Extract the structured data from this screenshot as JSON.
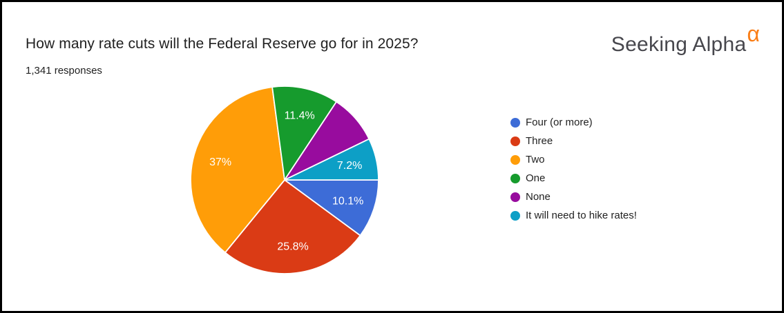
{
  "page": {
    "title": "How many rate cuts will the Federal Reserve go for in 2025?",
    "responses_label": "1,341 responses",
    "background_color": "#ffffff",
    "frame_color": "#000000"
  },
  "logo": {
    "text": "Seeking Alpha",
    "alpha_symbol": "α",
    "text_color": "#47474D",
    "alpha_color": "#FA7E17"
  },
  "chart_data": {
    "type": "pie",
    "title": "How many rate cuts will the Federal Reserve go for in 2025?",
    "responses_count": "1,341",
    "start_angle_deg": 90,
    "direction": "clockwise",
    "legend_position": "right",
    "slice_border_color": "#ffffff",
    "label_color": "#ffffff",
    "slices": [
      {
        "label": "Four (or more)",
        "value_pct": 10.1,
        "display_label": "10.1%",
        "color": "#3D6CD7"
      },
      {
        "label": "Three",
        "value_pct": 25.8,
        "display_label": "25.8%",
        "color": "#DA3B15"
      },
      {
        "label": "Two",
        "value_pct": 37.0,
        "display_label": "37%",
        "color": "#FF9D08"
      },
      {
        "label": "One",
        "value_pct": 11.4,
        "display_label": "11.4%",
        "color": "#169B2D"
      },
      {
        "label": "None",
        "value_pct": 8.5,
        "display_label": "",
        "color": "#980C9E"
      },
      {
        "label": "It will need to hike rates!",
        "value_pct": 7.2,
        "display_label": "7.2%",
        "color": "#0D9FC6"
      }
    ]
  }
}
